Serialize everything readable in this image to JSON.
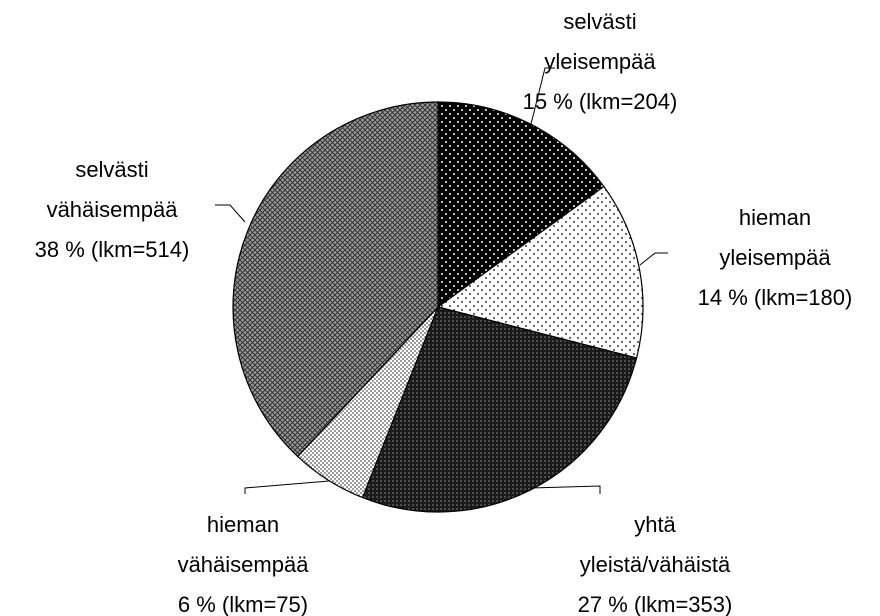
{
  "chart_data": {
    "type": "pie",
    "categories": [
      "selvästi\nyleisempää",
      "hieman\nyleisempää",
      "yhtä\nyleistä/vähäistä",
      "hieman\nvähäisempää",
      "selvästi\nvähäisempää"
    ],
    "values": [
      15,
      14,
      27,
      6,
      38
    ],
    "value_labels": [
      "15 % (lkm=204)",
      "14 % (lkm=180)",
      "27 % (lkm=353)",
      "6 % (lkm=75)",
      "38 % (lkm=514)"
    ]
  }
}
